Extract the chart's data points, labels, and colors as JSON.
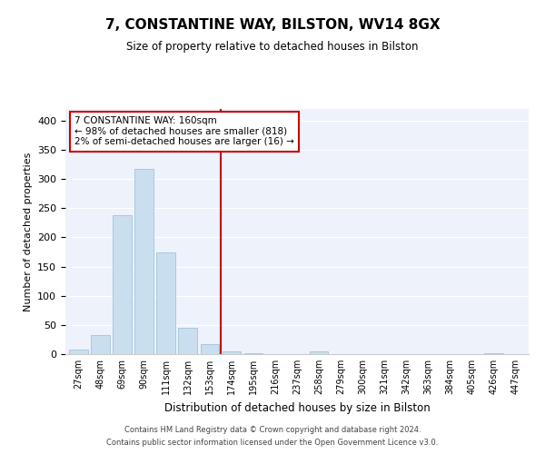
{
  "title": "7, CONSTANTINE WAY, BILSTON, WV14 8GX",
  "subtitle": "Size of property relative to detached houses in Bilston",
  "xlabel": "Distribution of detached houses by size in Bilston",
  "ylabel": "Number of detached properties",
  "bar_labels": [
    "27sqm",
    "48sqm",
    "69sqm",
    "90sqm",
    "111sqm",
    "132sqm",
    "153sqm",
    "174sqm",
    "195sqm",
    "216sqm",
    "237sqm",
    "258sqm",
    "279sqm",
    "300sqm",
    "321sqm",
    "342sqm",
    "363sqm",
    "384sqm",
    "405sqm",
    "426sqm",
    "447sqm"
  ],
  "bar_values": [
    8,
    32,
    238,
    318,
    175,
    45,
    17,
    5,
    1,
    0,
    0,
    4,
    0,
    0,
    0,
    0,
    0,
    0,
    0,
    2,
    0
  ],
  "bar_color": "#c9dff0",
  "bar_edge_color": "#a0c4d8",
  "ylim": [
    0,
    420
  ],
  "yticks": [
    0,
    50,
    100,
    150,
    200,
    250,
    300,
    350,
    400
  ],
  "property_line_x": 6.5,
  "property_line_color": "#cc0000",
  "annotation_title": "7 CONSTANTINE WAY: 160sqm",
  "annotation_line1": "← 98% of detached houses are smaller (818)",
  "annotation_line2": "2% of semi-detached houses are larger (16) →",
  "annotation_box_color": "#ffffff",
  "annotation_box_edge": "#cc0000",
  "footer_line1": "Contains HM Land Registry data © Crown copyright and database right 2024.",
  "footer_line2": "Contains public sector information licensed under the Open Government Licence v3.0.",
  "background_color": "#eef2fb"
}
